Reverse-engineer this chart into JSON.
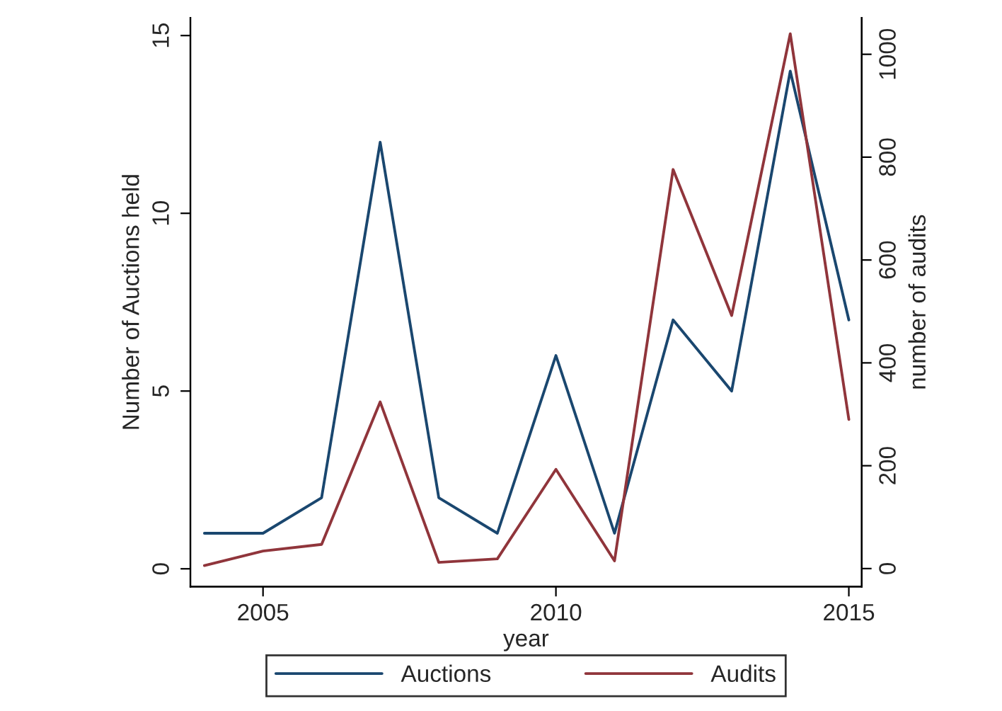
{
  "chart_data": {
    "type": "line",
    "xlabel": "year",
    "ylabel": "Number of Auctions held",
    "y2label": "number of audits",
    "x": [
      2004,
      2005,
      2006,
      2007,
      2008,
      2009,
      2010,
      2011,
      2012,
      2013,
      2014,
      2015
    ],
    "series": [
      {
        "name": "Auctions",
        "color": "#1a476f",
        "values": [
          1,
          1,
          2,
          12,
          2,
          1,
          6,
          1,
          7,
          5,
          14,
          7
        ]
      },
      {
        "name": "Audits",
        "color": "#90353b",
        "axis": "y2",
        "values": [
          6,
          34,
          47,
          324,
          12,
          19,
          193,
          15,
          776,
          492,
          1040,
          290
        ]
      }
    ],
    "xlim": [
      2003.76,
      2015.22
    ],
    "xticks": [
      2005,
      2010,
      2015
    ],
    "ylim": [
      -0.5,
      15.5
    ],
    "yticks": [
      0,
      5,
      10,
      15
    ],
    "y2lim": [
      -35,
      1071
    ],
    "y2ticks": [
      0,
      200,
      400,
      600,
      800,
      1000
    ],
    "grid": false,
    "legend": "bottom",
    "marker": "none",
    "line_style": "solid"
  }
}
